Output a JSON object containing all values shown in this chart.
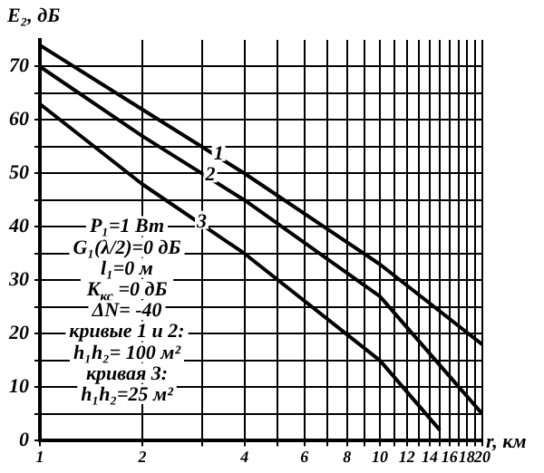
{
  "chart_data": {
    "type": "line",
    "ylabel": "E₂, дБ",
    "xlabel": "r, км",
    "log": "x",
    "grid": true,
    "marker": "none",
    "line_style": "solid",
    "legend": false,
    "xlim": [
      1,
      20
    ],
    "ylim": [
      0,
      75
    ],
    "xticks": [
      1,
      2,
      {
        "value": 3,
        "label": null
      },
      4,
      {
        "value": 5,
        "label": null
      },
      6,
      {
        "value": 7,
        "label": null
      },
      8,
      {
        "value": 9,
        "label": null
      },
      10,
      {
        "value": 11,
        "label": null
      },
      12,
      {
        "value": 13,
        "label": null
      },
      14,
      {
        "value": 15,
        "label": null
      },
      16,
      {
        "value": 17,
        "label": null
      },
      18,
      {
        "value": 19,
        "label": null
      },
      20
    ],
    "yticks": [
      0,
      {
        "value": 5,
        "label": null
      },
      10,
      {
        "value": 15,
        "label": null
      },
      20,
      {
        "value": 25,
        "label": null
      },
      30,
      {
        "value": 35,
        "label": null
      },
      40,
      {
        "value": 45,
        "label": null
      },
      50,
      {
        "value": 55,
        "label": null
      },
      60,
      {
        "value": 65,
        "label": null
      },
      70
    ],
    "series": [
      {
        "color": "#000000",
        "x": [
          1,
          2,
          4,
          10,
          20
        ],
        "values": [
          74,
          62,
          50,
          33,
          18
        ]
      },
      {
        "color": "#000000",
        "x": [
          1,
          2,
          4,
          10,
          20
        ],
        "values": [
          70,
          57,
          45,
          27,
          5
        ]
      },
      {
        "color": "#000000",
        "x": [
          1,
          2,
          4,
          10,
          15
        ],
        "values": [
          63,
          48,
          35,
          15,
          2
        ]
      }
    ],
    "annotations": [
      {
        "text": "1",
        "x": 3.7,
        "y": 51.3
      },
      {
        "text": "2",
        "x": 3.5,
        "y": 47.3
      },
      {
        "text": "3",
        "x": 3.3,
        "y": 38.6
      },
      "P₁=1 Вт",
      "G₁(λ/2)=0 дБ",
      "l₁=0 м",
      "K$_{кс}$ =0 дБ",
      "ΔN= -40",
      "кривые 1 и 2:",
      "h₁h₂= 100 м²",
      "кривая 3:",
      "h₁h₂=25 м²"
    ]
  }
}
